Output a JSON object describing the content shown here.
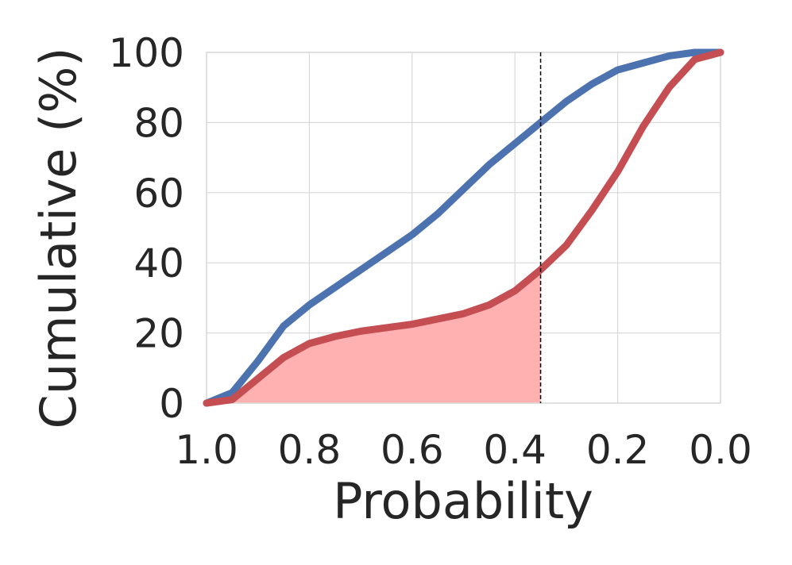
{
  "chart_data": {
    "type": "line",
    "xlabel": "Probability",
    "ylabel": "Cumulative (%)",
    "xlim": [
      1.0,
      0.0
    ],
    "ylim": [
      0,
      100
    ],
    "x_reversed": true,
    "grid": true,
    "legend": "none",
    "xticks": [
      1.0,
      0.8,
      0.6,
      0.4,
      0.2,
      0.0
    ],
    "xtick_labels": [
      "1.0",
      "0.8",
      "0.6",
      "0.4",
      "0.2",
      "0.0"
    ],
    "yticks": [
      0,
      20,
      40,
      60,
      80,
      100
    ],
    "ytick_labels": [
      "0",
      "20",
      "40",
      "60",
      "80",
      "100"
    ],
    "threshold_x": 0.35,
    "series": [
      {
        "color": "#4c72b0",
        "x": [
          1.0,
          0.95,
          0.9,
          0.85,
          0.8,
          0.75,
          0.7,
          0.65,
          0.6,
          0.55,
          0.5,
          0.45,
          0.4,
          0.35,
          0.3,
          0.25,
          0.2,
          0.15,
          0.1,
          0.05,
          0.0
        ],
        "y": [
          0,
          3,
          12,
          22,
          28,
          33,
          38,
          43,
          48,
          54,
          61,
          68,
          74,
          80,
          86,
          91,
          95,
          97,
          99,
          100,
          100
        ]
      },
      {
        "color": "#c44e52",
        "fill": "#ffb0b0",
        "fill_until_x": 0.35,
        "x": [
          1.0,
          0.95,
          0.9,
          0.85,
          0.8,
          0.75,
          0.7,
          0.65,
          0.6,
          0.55,
          0.5,
          0.45,
          0.4,
          0.35,
          0.3,
          0.25,
          0.2,
          0.15,
          0.1,
          0.05,
          0.0
        ],
        "y": [
          0,
          1,
          7,
          13,
          17,
          19,
          20.5,
          21.5,
          22.5,
          24,
          25.5,
          28,
          32,
          38,
          45,
          55,
          66,
          79,
          90,
          98,
          100
        ]
      }
    ]
  }
}
